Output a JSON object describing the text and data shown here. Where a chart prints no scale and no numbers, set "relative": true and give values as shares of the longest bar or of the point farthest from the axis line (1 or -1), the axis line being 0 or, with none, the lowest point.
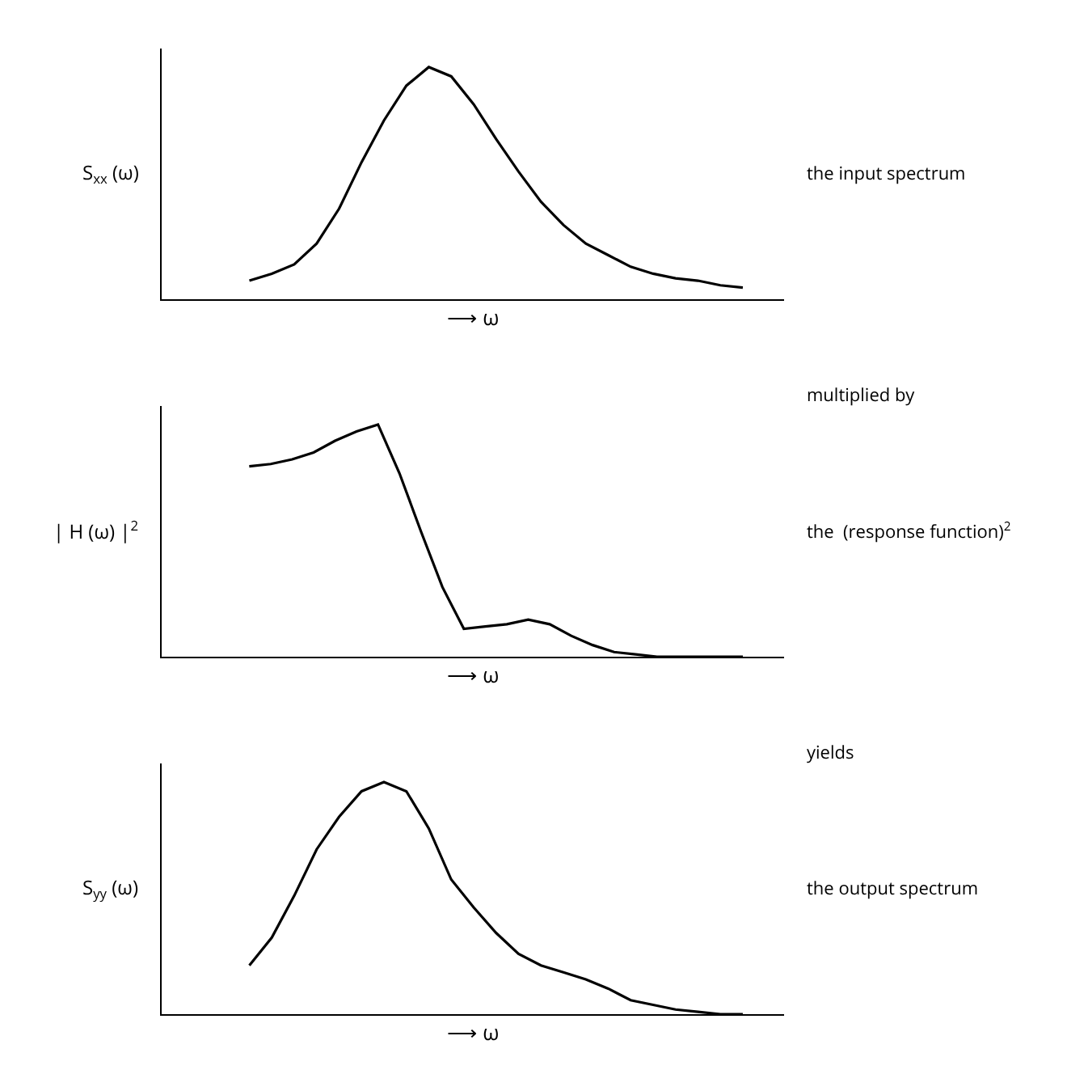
{
  "chart_data": [
    {
      "type": "line",
      "relative": true,
      "ylabel": "S$_{xx}$ (ω)",
      "xlabel": "⟶ ω",
      "annotations": [
        "the input spectrum"
      ],
      "marker": "none",
      "line_style": "solid",
      "categories": [
        null,
        null,
        null,
        null,
        null,
        null,
        null,
        null,
        null,
        null,
        null,
        null,
        null,
        null,
        null,
        null,
        null,
        null,
        null,
        null,
        null,
        null,
        null
      ],
      "series": [
        {
          "color": "#000000",
          "values": [
            0.08,
            0.11,
            0.15,
            0.24,
            0.39,
            0.59,
            0.77,
            0.92,
            1.0,
            0.96,
            0.84,
            0.69,
            0.55,
            0.42,
            0.32,
            0.24,
            0.19,
            0.14,
            0.11,
            0.09,
            0.08,
            0.06,
            0.05
          ]
        }
      ]
    },
    {
      "type": "line",
      "relative": true,
      "ylabel": "| H (ω) |$^{2}$",
      "xlabel": "⟶ ω",
      "annotations": [
        "multiplied by",
        "the  (response function)$^{2}$"
      ],
      "marker": "none",
      "line_style": "solid",
      "categories": [
        null,
        null,
        null,
        null,
        null,
        null,
        null,
        null,
        null,
        null,
        null,
        null,
        null,
        null,
        null,
        null,
        null,
        null,
        null,
        null,
        null,
        null,
        null,
        null
      ],
      "series": [
        {
          "color": "#000000",
          "values": [
            0.82,
            0.83,
            0.85,
            0.88,
            0.93,
            0.97,
            1.0,
            0.79,
            0.54,
            0.3,
            0.12,
            0.13,
            0.14,
            0.16,
            0.14,
            0.09,
            0.05,
            0.02,
            0.01,
            0,
            0,
            0,
            0,
            0
          ]
        }
      ]
    },
    {
      "type": "line",
      "relative": true,
      "ylabel": "S$_{yy}$ (ω)",
      "xlabel": "⟶ ω",
      "annotations": [
        "yields",
        "the output spectrum"
      ],
      "marker": "none",
      "line_style": "solid",
      "categories": [
        null,
        null,
        null,
        null,
        null,
        null,
        null,
        null,
        null,
        null,
        null,
        null,
        null,
        null,
        null,
        null,
        null,
        null,
        null,
        null,
        null,
        null,
        null
      ],
      "series": [
        {
          "color": "#000000",
          "values": [
            0.21,
            0.33,
            0.51,
            0.71,
            0.85,
            0.96,
            1.0,
            0.96,
            0.8,
            0.58,
            0.46,
            0.35,
            0.26,
            0.21,
            0.18,
            0.15,
            0.11,
            0.06,
            0.04,
            0.02,
            0.01,
            0,
            0
          ]
        }
      ]
    }
  ]
}
